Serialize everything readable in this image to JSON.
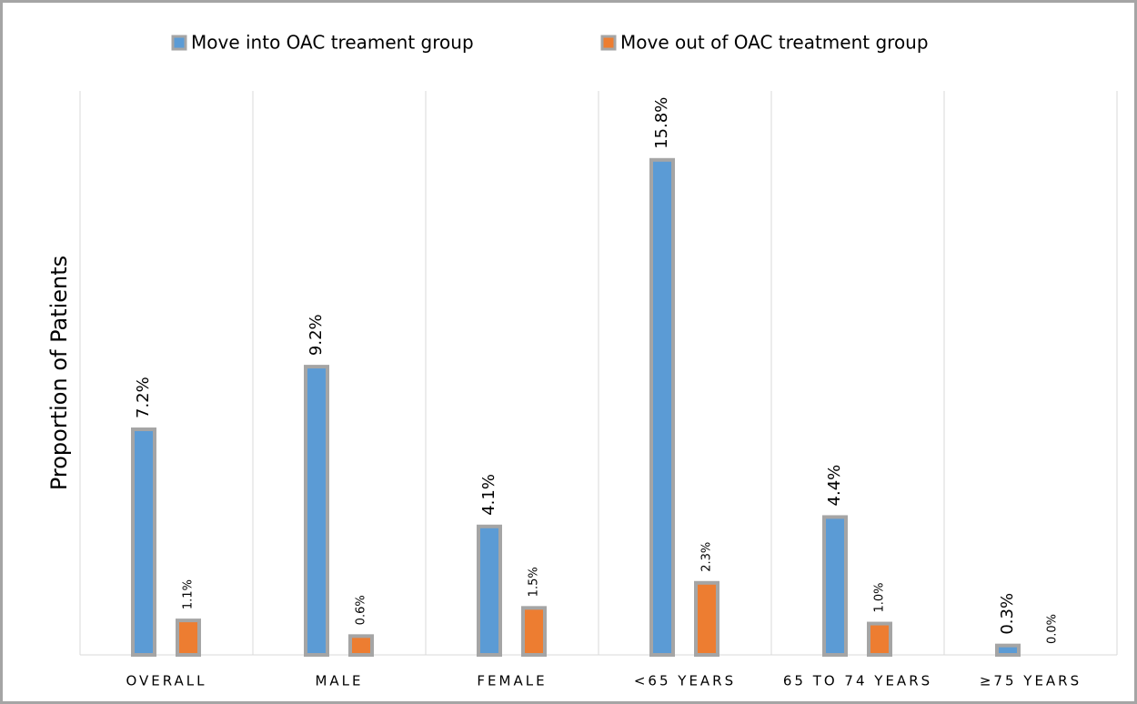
{
  "chart_data": {
    "type": "bar",
    "y_label": "Proportion of Patients",
    "categories": [
      "OVERALL",
      "MALE",
      "FEMALE",
      "<65 YEARS",
      "65 TO 74 YEARS",
      "≥75 YEARS"
    ],
    "series": [
      {
        "name": "Move into OAC treament group",
        "color": "#5b9bd5",
        "values": [
          7.2,
          9.2,
          4.1,
          15.8,
          4.4,
          0.3
        ],
        "value_labels": [
          "7.2%",
          "9.2%",
          "4.1%",
          "15.8%",
          "4.4%",
          "0.3%"
        ]
      },
      {
        "name": "Move out of OAC treatment group",
        "color": "#ed7d31",
        "values": [
          1.1,
          0.6,
          1.5,
          2.3,
          1.0,
          0.0
        ],
        "value_labels": [
          "1.1%",
          "0.6%",
          "1.5%",
          "2.3%",
          "1.0%",
          "0.0%"
        ]
      }
    ],
    "ylim": [
      0,
      18
    ],
    "legend": "top"
  }
}
